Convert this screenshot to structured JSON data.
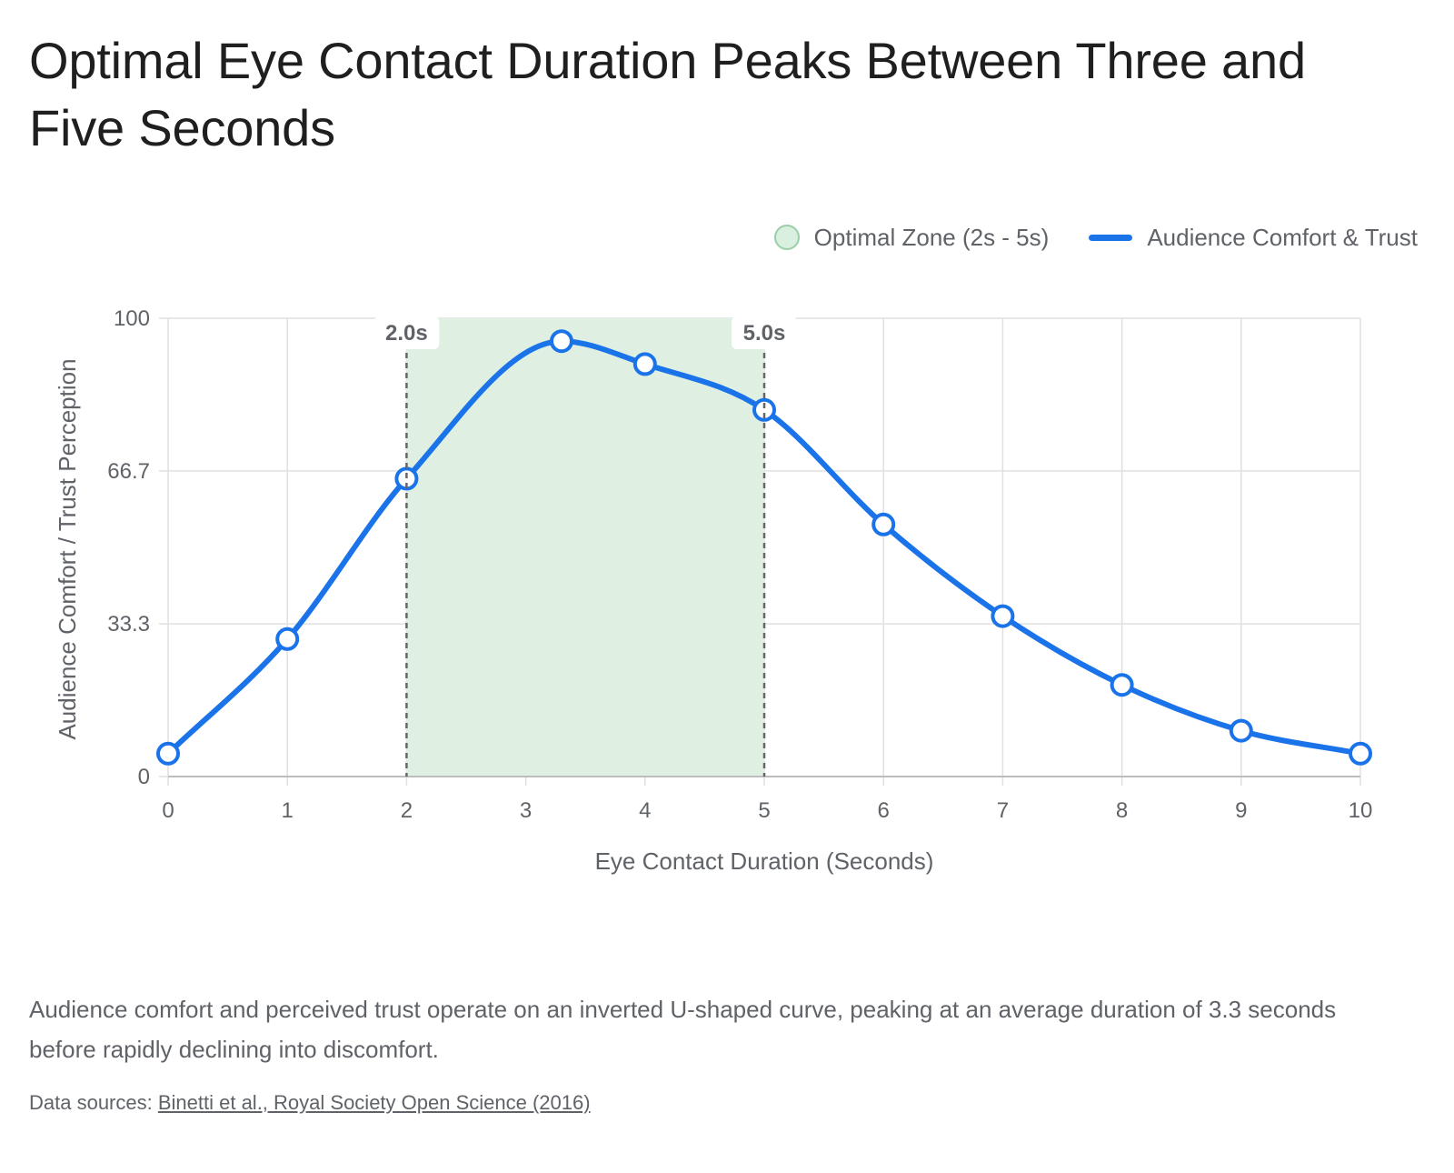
{
  "title": "Optimal Eye Contact Duration Peaks Between Three and Five Seconds",
  "legend": {
    "zone_label": "Optimal Zone (2s - 5s)",
    "line_label": "Audience Comfort & Trust"
  },
  "caption": "Audience comfort and perceived trust operate on an inverted U-shaped curve, peaking at an average duration of 3.3 seconds before rapidly declining into discomfort.",
  "source": {
    "prefix": "Data sources:",
    "link_text": "Binetti et al., Royal Society Open Science (2016)"
  },
  "colors": {
    "line": "#1a73e8",
    "zone_fill": "#dff0e3",
    "grid": "#e0e0e0",
    "axis_text": "#5f6368",
    "marker_line": "#666666"
  },
  "chart_data": {
    "type": "line",
    "title": "Optimal Eye Contact Duration Peaks Between Three and Five Seconds",
    "xlabel": "Eye Contact Duration (Seconds)",
    "ylabel": "Audience Comfort / Trust Perception",
    "xlim": [
      0,
      10
    ],
    "ylim": [
      0,
      100
    ],
    "x_ticks": [
      "0",
      "1",
      "2",
      "3",
      "4",
      "5",
      "6",
      "7",
      "8",
      "9",
      "10"
    ],
    "y_ticks": [
      "0",
      "33.3",
      "66.7",
      "100"
    ],
    "grid": true,
    "legend_position": "top-right",
    "series": [
      {
        "name": "Audience Comfort & Trust",
        "x": [
          0,
          1,
          2,
          3.3,
          4,
          5,
          6,
          7,
          8,
          9,
          10
        ],
        "y": [
          5,
          30,
          65,
          95,
          90,
          80,
          55,
          35,
          20,
          10,
          5
        ]
      }
    ],
    "shaded_region": {
      "name": "Optimal Zone (2s - 5s)",
      "x_start": 2,
      "x_end": 5
    },
    "annotations": [
      {
        "x": 2,
        "label": "2.0s"
      },
      {
        "x": 5,
        "label": "5.0s"
      }
    ]
  }
}
